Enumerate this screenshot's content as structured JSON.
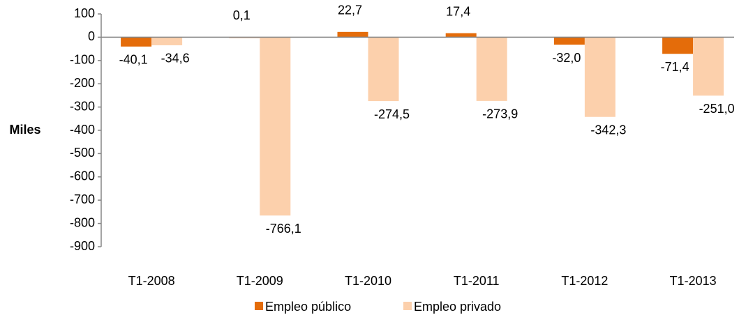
{
  "chart_data": {
    "type": "bar",
    "y_label": "Miles",
    "categories": [
      "T1-2008",
      "T1-2009",
      "T1-2010",
      "T1-2011",
      "T1-2012",
      "T1-2013"
    ],
    "series": [
      {
        "name": "Empleo público",
        "color": "#e46c0a",
        "values": [
          -40.1,
          0.1,
          22.7,
          17.4,
          -32.0,
          -71.4
        ],
        "value_labels": [
          "-40,1",
          "0,1",
          "22,7",
          "17,4",
          "-32,0",
          "-71,4"
        ]
      },
      {
        "name": "Empleo privado",
        "color": "#fcd0ac",
        "values": [
          -34.6,
          -766.1,
          -274.5,
          -273.9,
          -342.3,
          -251.0
        ],
        "value_labels": [
          "-34,6",
          "-766,1",
          "-274,5",
          "-273,9",
          "-342,3",
          "-251,0"
        ]
      }
    ],
    "ylim": [
      -900,
      100
    ],
    "yticks": [
      100,
      0,
      -100,
      -200,
      -300,
      -400,
      -500,
      -600,
      -700,
      -800,
      -900
    ],
    "legend": "bottom"
  }
}
